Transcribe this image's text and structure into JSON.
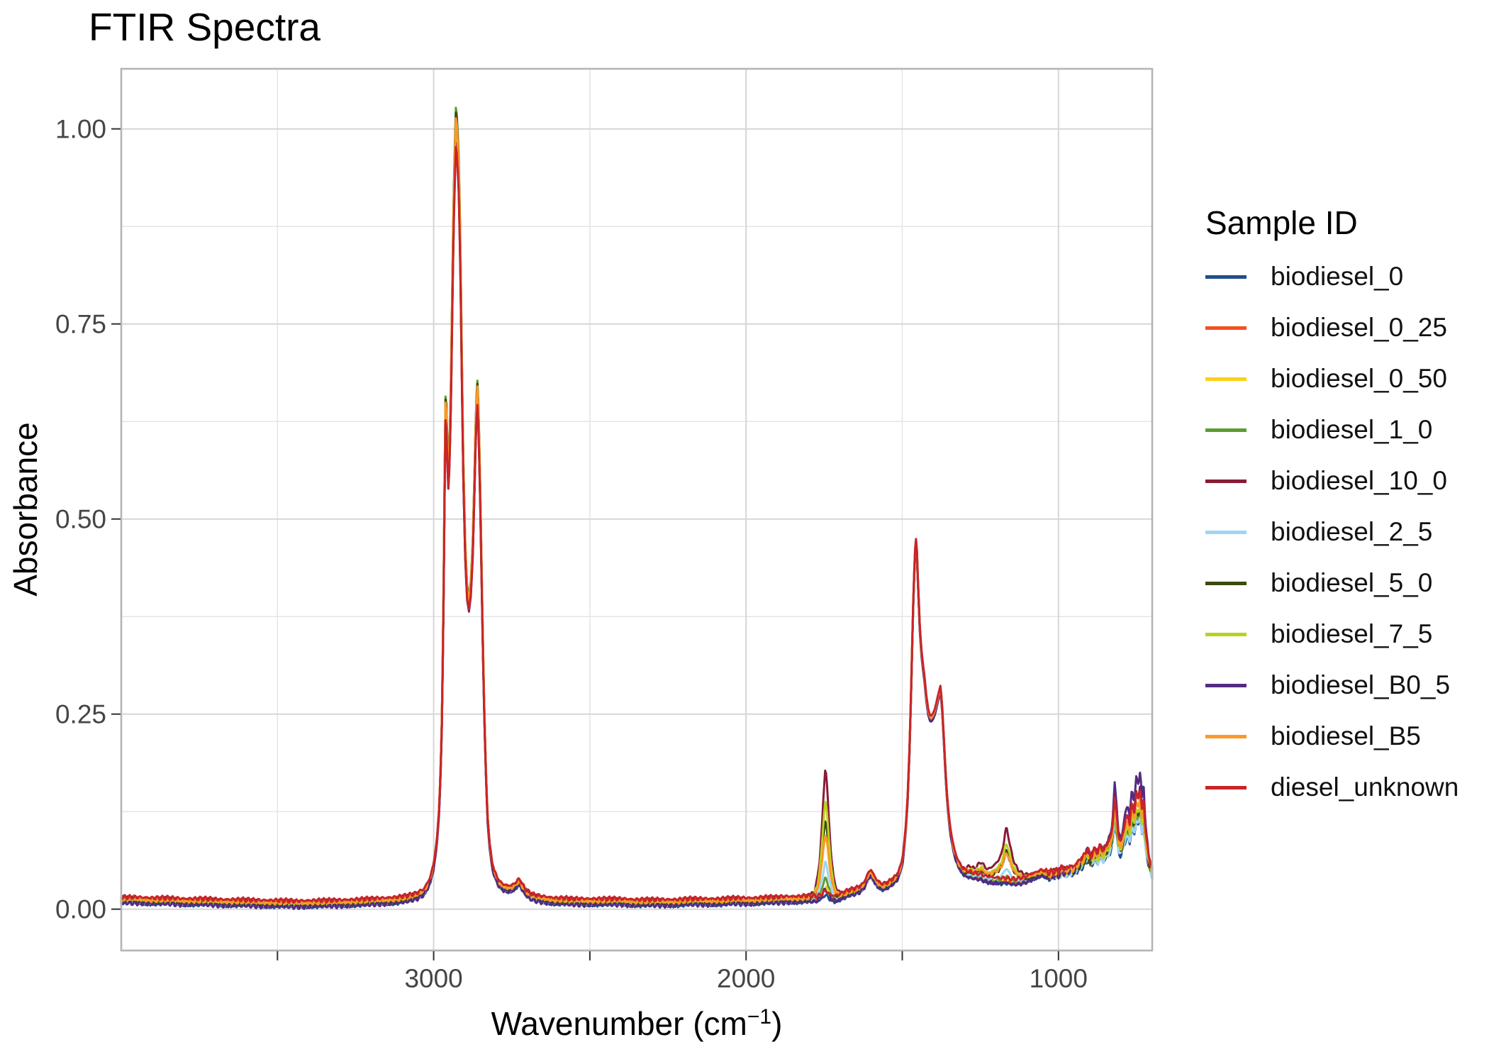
{
  "title": "FTIR Spectra",
  "axes": {
    "x": {
      "title_prefix": "Wavenumber (cm",
      "title_sup": "−1",
      "title_suffix": ")",
      "domain": [
        4000,
        700
      ],
      "ticks": [
        {
          "value": 3500,
          "label": ""
        },
        {
          "value": 3000,
          "label": "3000"
        },
        {
          "value": 2500,
          "label": ""
        },
        {
          "value": 2000,
          "label": "2000"
        },
        {
          "value": 1500,
          "label": ""
        },
        {
          "value": 1000,
          "label": "1000"
        }
      ]
    },
    "y": {
      "title": "Absorbance",
      "domain": [
        -0.053,
        1.077
      ],
      "ticks": [
        {
          "value": 0,
          "label": "0.00"
        },
        {
          "value": 0.25,
          "label": "0.25"
        },
        {
          "value": 0.5,
          "label": "0.50"
        },
        {
          "value": 0.75,
          "label": "0.75"
        },
        {
          "value": 1,
          "label": "1.00"
        }
      ],
      "minor": [
        0.125,
        0.375,
        0.625,
        0.875
      ]
    }
  },
  "legend": {
    "title": "Sample ID"
  },
  "style": {
    "background": "#ffffff",
    "panel_border": "#b5b5b5",
    "grid_major": "#d6d6d6",
    "grid_minor": "#e5e5e5",
    "tick_mark_color": "#333333",
    "tick_label_color": "#454545",
    "text_color": "#000000",
    "series_stroke_width": 3
  },
  "chart_data": {
    "type": "line",
    "title": "FTIR Spectra",
    "xlabel": "Wavenumber (cm^-1)",
    "ylabel": "Absorbance",
    "x_range": [
      4000,
      700
    ],
    "x_reversed": true,
    "y_range": [
      -0.053,
      1.077
    ],
    "x_major_ticks": [
      3000,
      2000,
      1000
    ],
    "x_minor_ticks": [
      3500,
      2500,
      1500
    ],
    "y_major_ticks": [
      0,
      0.25,
      0.5,
      0.75,
      1.0
    ],
    "grid": true,
    "legend_position": "right",
    "base_spectrum": [
      [
        4000,
        0.011
      ],
      [
        3950,
        0.011
      ],
      [
        3900,
        0.01
      ],
      [
        3850,
        0.01
      ],
      [
        3800,
        0.009
      ],
      [
        3740,
        0.009
      ],
      [
        3680,
        0.008
      ],
      [
        3620,
        0.008
      ],
      [
        3560,
        0.007
      ],
      [
        3500,
        0.007
      ],
      [
        3440,
        0.006
      ],
      [
        3380,
        0.007
      ],
      [
        3320,
        0.007
      ],
      [
        3260,
        0.008
      ],
      [
        3200,
        0.009
      ],
      [
        3160,
        0.01
      ],
      [
        3120,
        0.011
      ],
      [
        3085,
        0.013
      ],
      [
        3055,
        0.016
      ],
      [
        3030,
        0.022
      ],
      [
        3012,
        0.036
      ],
      [
        3000,
        0.055
      ],
      [
        2990,
        0.085
      ],
      [
        2982,
        0.13
      ],
      [
        2975,
        0.21
      ],
      [
        2969,
        0.37
      ],
      [
        2964,
        0.58
      ],
      [
        2961,
        0.67
      ],
      [
        2957,
        0.59
      ],
      [
        2953,
        0.55
      ],
      [
        2949,
        0.58
      ],
      [
        2944,
        0.68
      ],
      [
        2939,
        0.82
      ],
      [
        2934,
        0.93
      ],
      [
        2929,
        1.0
      ],
      [
        2925,
        0.99
      ],
      [
        2920,
        0.94
      ],
      [
        2915,
        0.85
      ],
      [
        2910,
        0.7
      ],
      [
        2905,
        0.56
      ],
      [
        2899,
        0.46
      ],
      [
        2893,
        0.405
      ],
      [
        2887,
        0.39
      ],
      [
        2881,
        0.41
      ],
      [
        2875,
        0.46
      ],
      [
        2869,
        0.55
      ],
      [
        2864,
        0.635
      ],
      [
        2860,
        0.66
      ],
      [
        2856,
        0.625
      ],
      [
        2852,
        0.55
      ],
      [
        2847,
        0.44
      ],
      [
        2842,
        0.33
      ],
      [
        2837,
        0.235
      ],
      [
        2832,
        0.165
      ],
      [
        2827,
        0.115
      ],
      [
        2821,
        0.082
      ],
      [
        2814,
        0.06
      ],
      [
        2807,
        0.047
      ],
      [
        2799,
        0.039
      ],
      [
        2791,
        0.033
      ],
      [
        2782,
        0.029
      ],
      [
        2773,
        0.027
      ],
      [
        2764,
        0.026
      ],
      [
        2755,
        0.026
      ],
      [
        2747,
        0.027
      ],
      [
        2739,
        0.029
      ],
      [
        2731,
        0.033
      ],
      [
        2724,
        0.034
      ],
      [
        2717,
        0.028
      ],
      [
        2709,
        0.023
      ],
      [
        2700,
        0.019
      ],
      [
        2690,
        0.016
      ],
      [
        2678,
        0.014
      ],
      [
        2664,
        0.013
      ],
      [
        2648,
        0.012
      ],
      [
        2630,
        0.011
      ],
      [
        2610,
        0.01
      ],
      [
        2585,
        0.01
      ],
      [
        2560,
        0.009
      ],
      [
        2530,
        0.009
      ],
      [
        2500,
        0.009
      ],
      [
        2465,
        0.009
      ],
      [
        2430,
        0.009
      ],
      [
        2395,
        0.009
      ],
      [
        2360,
        0.008
      ],
      [
        2325,
        0.008
      ],
      [
        2290,
        0.008
      ],
      [
        2255,
        0.008
      ],
      [
        2220,
        0.008
      ],
      [
        2185,
        0.009
      ],
      [
        2150,
        0.009
      ],
      [
        2115,
        0.009
      ],
      [
        2080,
        0.009
      ],
      [
        2045,
        0.01
      ],
      [
        2010,
        0.01
      ],
      [
        1975,
        0.01
      ],
      [
        1940,
        0.011
      ],
      [
        1905,
        0.011
      ],
      [
        1870,
        0.012
      ],
      [
        1835,
        0.012
      ],
      [
        1805,
        0.013
      ],
      [
        1780,
        0.012
      ],
      [
        1760,
        0.011
      ],
      [
        1745,
        0.011
      ],
      [
        1730,
        0.011
      ],
      [
        1715,
        0.012
      ],
      [
        1700,
        0.015
      ],
      [
        1690,
        0.017
      ],
      [
        1678,
        0.019
      ],
      [
        1665,
        0.021
      ],
      [
        1652,
        0.022
      ],
      [
        1640,
        0.024
      ],
      [
        1628,
        0.027
      ],
      [
        1616,
        0.035
      ],
      [
        1607,
        0.044
      ],
      [
        1600,
        0.046
      ],
      [
        1592,
        0.04
      ],
      [
        1583,
        0.034
      ],
      [
        1573,
        0.03
      ],
      [
        1563,
        0.028
      ],
      [
        1553,
        0.029
      ],
      [
        1543,
        0.031
      ],
      [
        1533,
        0.034
      ],
      [
        1523,
        0.037
      ],
      [
        1514,
        0.042
      ],
      [
        1506,
        0.05
      ],
      [
        1498,
        0.065
      ],
      [
        1490,
        0.095
      ],
      [
        1483,
        0.14
      ],
      [
        1477,
        0.2
      ],
      [
        1471,
        0.29
      ],
      [
        1466,
        0.375
      ],
      [
        1461,
        0.44
      ],
      [
        1457,
        0.475
      ],
      [
        1453,
        0.455
      ],
      [
        1449,
        0.41
      ],
      [
        1444,
        0.36
      ],
      [
        1439,
        0.33
      ],
      [
        1434,
        0.31
      ],
      [
        1429,
        0.295
      ],
      [
        1423,
        0.27
      ],
      [
        1417,
        0.252
      ],
      [
        1410,
        0.243
      ],
      [
        1403,
        0.245
      ],
      [
        1396,
        0.252
      ],
      [
        1390,
        0.262
      ],
      [
        1384,
        0.272
      ],
      [
        1378,
        0.282
      ],
      [
        1373,
        0.262
      ],
      [
        1368,
        0.225
      ],
      [
        1363,
        0.185
      ],
      [
        1358,
        0.15
      ],
      [
        1352,
        0.12
      ],
      [
        1346,
        0.1
      ],
      [
        1340,
        0.085
      ],
      [
        1333,
        0.072
      ],
      [
        1326,
        0.063
      ],
      [
        1318,
        0.056
      ],
      [
        1310,
        0.05
      ],
      [
        1300,
        0.046
      ],
      [
        1290,
        0.044
      ],
      [
        1280,
        0.043
      ],
      [
        1270,
        0.042
      ],
      [
        1258,
        0.041
      ],
      [
        1246,
        0.04
      ],
      [
        1234,
        0.038
      ],
      [
        1222,
        0.037
      ],
      [
        1210,
        0.036
      ],
      [
        1198,
        0.036
      ],
      [
        1186,
        0.035
      ],
      [
        1174,
        0.035
      ],
      [
        1162,
        0.034
      ],
      [
        1150,
        0.034
      ],
      [
        1138,
        0.034
      ],
      [
        1126,
        0.035
      ],
      [
        1114,
        0.036
      ],
      [
        1102,
        0.038
      ],
      [
        1090,
        0.04
      ],
      [
        1078,
        0.042
      ],
      [
        1066,
        0.044
      ],
      [
        1055,
        0.046
      ],
      [
        1045,
        0.045
      ],
      [
        1035,
        0.043
      ],
      [
        1025,
        0.042
      ],
      [
        1015,
        0.042
      ],
      [
        1005,
        0.041
      ],
      [
        995,
        0.041
      ],
      [
        985,
        0.042
      ],
      [
        975,
        0.042
      ],
      [
        965,
        0.041
      ],
      [
        955,
        0.042
      ],
      [
        945,
        0.043
      ],
      [
        935,
        0.044
      ],
      [
        925,
        0.045
      ],
      [
        915,
        0.046
      ],
      [
        905,
        0.046
      ],
      [
        895,
        0.045
      ],
      [
        885,
        0.046
      ],
      [
        875,
        0.045
      ],
      [
        865,
        0.046
      ],
      [
        855,
        0.045
      ],
      [
        845,
        0.046
      ],
      [
        835,
        0.046
      ],
      [
        825,
        0.045
      ],
      [
        815,
        0.045
      ],
      [
        805,
        0.044
      ],
      [
        795,
        0.044
      ],
      [
        785,
        0.044
      ],
      [
        775,
        0.043
      ],
      [
        765,
        0.043
      ],
      [
        755,
        0.042
      ],
      [
        745,
        0.042
      ],
      [
        735,
        0.041
      ],
      [
        725,
        0.041
      ],
      [
        715,
        0.04
      ],
      [
        707,
        0.038
      ],
      [
        700,
        0.036
      ]
    ],
    "carbonyl_band_shape": [
      [
        1802,
        0
      ],
      [
        1790,
        0.02
      ],
      [
        1780,
        0.06
      ],
      [
        1772,
        0.14
      ],
      [
        1764,
        0.3
      ],
      [
        1757,
        0.55
      ],
      [
        1751,
        0.82
      ],
      [
        1746,
        1.0
      ],
      [
        1741,
        0.86
      ],
      [
        1735,
        0.6
      ],
      [
        1728,
        0.33
      ],
      [
        1720,
        0.16
      ],
      [
        1712,
        0.07
      ],
      [
        1703,
        0.03
      ],
      [
        1695,
        0.012
      ],
      [
        1686,
        0
      ]
    ],
    "ester_band_shape": [
      [
        1310,
        0
      ],
      [
        1295,
        0.08
      ],
      [
        1283,
        0.14
      ],
      [
        1270,
        0.1
      ],
      [
        1258,
        0.19
      ],
      [
        1247,
        0.26
      ],
      [
        1237,
        0.2
      ],
      [
        1226,
        0.16
      ],
      [
        1214,
        0.22
      ],
      [
        1202,
        0.28
      ],
      [
        1192,
        0.36
      ],
      [
        1183,
        0.48
      ],
      [
        1176,
        0.66
      ],
      [
        1170,
        0.92
      ],
      [
        1166,
        1.0
      ],
      [
        1161,
        0.85
      ],
      [
        1154,
        0.62
      ],
      [
        1147,
        0.45
      ],
      [
        1139,
        0.3
      ],
      [
        1130,
        0.2
      ],
      [
        1120,
        0.13
      ],
      [
        1110,
        0.08
      ],
      [
        1098,
        0.05
      ],
      [
        1085,
        0.03
      ],
      [
        1070,
        0.015
      ],
      [
        1055,
        0.005
      ],
      [
        1042,
        0
      ]
    ],
    "fingerprint_band_shape": [
      [
        1030,
        0
      ],
      [
        1015,
        0.002
      ],
      [
        1000,
        0.003
      ],
      [
        988,
        0.006
      ],
      [
        976,
        0.004
      ],
      [
        964,
        0.008
      ],
      [
        952,
        0.006
      ],
      [
        940,
        0.01
      ],
      [
        928,
        0.012
      ],
      [
        916,
        0.016
      ],
      [
        906,
        0.022
      ],
      [
        898,
        0.014
      ],
      [
        890,
        0.018
      ],
      [
        882,
        0.022
      ],
      [
        874,
        0.018
      ],
      [
        866,
        0.026
      ],
      [
        858,
        0.02
      ],
      [
        850,
        0.024
      ],
      [
        842,
        0.028
      ],
      [
        834,
        0.032
      ],
      [
        827,
        0.045
      ],
      [
        820,
        0.075
      ],
      [
        814,
        0.058
      ],
      [
        808,
        0.036
      ],
      [
        800,
        0.03
      ],
      [
        793,
        0.04
      ],
      [
        786,
        0.052
      ],
      [
        779,
        0.058
      ],
      [
        772,
        0.05
      ],
      [
        765,
        0.072
      ],
      [
        758,
        0.06
      ],
      [
        751,
        0.082
      ],
      [
        744,
        0.075
      ],
      [
        738,
        0.088
      ],
      [
        733,
        0.065
      ],
      [
        728,
        0.08
      ],
      [
        723,
        0.052
      ],
      [
        718,
        0.035
      ],
      [
        712,
        0.022
      ],
      [
        706,
        0.014
      ],
      [
        700,
        0.01
      ]
    ],
    "series": [
      {
        "sample_id": "biodiesel_0",
        "color": "#1f4e8a",
        "carbonyl_height": 0.01,
        "ester_height": 0.002,
        "fingerprint_factor": 0.9,
        "ch_scale": 0.995,
        "baseline_offset": -0.0028
      },
      {
        "sample_id": "biodiesel_0_25",
        "color": "#f4511e",
        "carbonyl_height": 0.014,
        "ester_height": 0.003,
        "fingerprint_factor": 0.95,
        "ch_scale": 1.0,
        "baseline_offset": 0.0004
      },
      {
        "sample_id": "biodiesel_0_50",
        "color": "#fdd017",
        "carbonyl_height": 0.018,
        "ester_height": 0.005,
        "fingerprint_factor": 1.0,
        "ch_scale": 1.015,
        "baseline_offset": 0.0
      },
      {
        "sample_id": "biodiesel_1_0",
        "color": "#5c9e31",
        "carbonyl_height": 0.03,
        "ester_height": 0.008,
        "fingerprint_factor": 1.0,
        "ch_scale": 1.028,
        "baseline_offset": -0.0005
      },
      {
        "sample_id": "biodiesel_10_0",
        "color": "#881c36",
        "carbonyl_height": 0.17,
        "ester_height": 0.068,
        "fingerprint_factor": 1.3,
        "ch_scale": 0.988,
        "baseline_offset": 0.0028
      },
      {
        "sample_id": "biodiesel_2_5",
        "color": "#9ed6f4",
        "carbonyl_height": 0.051,
        "ester_height": 0.019,
        "fingerprint_factor": 0.9,
        "ch_scale": 1.005,
        "baseline_offset": -0.0012
      },
      {
        "sample_id": "biodiesel_5_0",
        "color": "#3a4a10",
        "carbonyl_height": 0.106,
        "ester_height": 0.042,
        "fingerprint_factor": 1.05,
        "ch_scale": 1.022,
        "baseline_offset": -0.0008
      },
      {
        "sample_id": "biodiesel_7_5",
        "color": "#b7d320",
        "carbonyl_height": 0.13,
        "ester_height": 0.05,
        "fingerprint_factor": 1.05,
        "ch_scale": 1.008,
        "baseline_offset": 0.0008
      },
      {
        "sample_id": "biodiesel_B0_5",
        "color": "#542b80",
        "carbonyl_height": 0.018,
        "ester_height": 0.003,
        "fingerprint_factor": 1.6,
        "ch_scale": 0.985,
        "baseline_offset": -0.0032
      },
      {
        "sample_id": "biodiesel_B5",
        "color": "#fd9827",
        "carbonyl_height": 0.085,
        "ester_height": 0.037,
        "fingerprint_factor": 1.15,
        "ch_scale": 1.012,
        "baseline_offset": 0.0018
      },
      {
        "sample_id": "diesel_unknown",
        "color": "#c92428",
        "carbonyl_height": 0.008,
        "ester_height": 0.001,
        "fingerprint_factor": 1.25,
        "ch_scale": 0.972,
        "baseline_offset": 0.0045
      }
    ]
  }
}
